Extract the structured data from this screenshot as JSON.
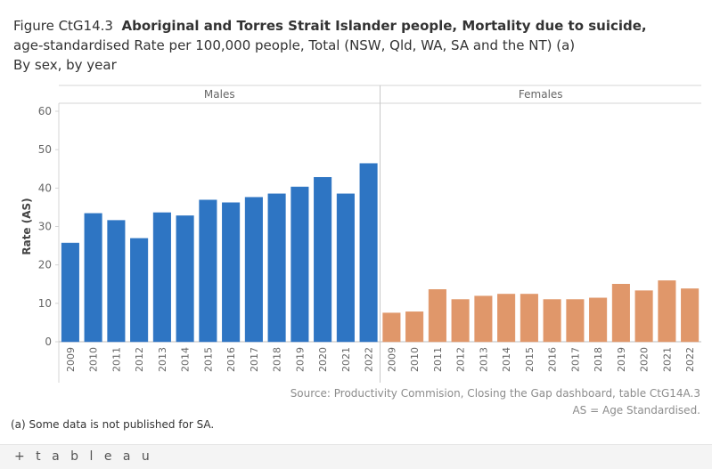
{
  "header": {
    "figure_label": "Figure CtG14.3",
    "title_line1": "Aboriginal and Torres Strait Islander people, Mortality due to suicide,",
    "title_line2": "age-standardised Rate per 100,000 people, Total (NSW, Qld, WA, SA and the NT) (a)",
    "subtitle": "By sex, by year"
  },
  "chart_data": {
    "type": "bar",
    "ylabel": "Rate (AS)",
    "ylim": [
      0,
      60
    ],
    "yticks": [
      0,
      10,
      20,
      30,
      40,
      50,
      60
    ],
    "grid": false,
    "panels": [
      {
        "name": "Males",
        "color": "#2e75c3",
        "categories": [
          "2009",
          "2010",
          "2011",
          "2012",
          "2013",
          "2014",
          "2015",
          "2016",
          "2017",
          "2018",
          "2019",
          "2020",
          "2021",
          "2022"
        ],
        "values": [
          25.7,
          33.4,
          31.6,
          26.9,
          33.6,
          32.8,
          36.9,
          36.2,
          37.6,
          38.5,
          40.3,
          42.8,
          38.5,
          46.4
        ]
      },
      {
        "name": "Females",
        "color": "#e0976a",
        "categories": [
          "2009",
          "2010",
          "2011",
          "2012",
          "2013",
          "2014",
          "2015",
          "2016",
          "2017",
          "2018",
          "2019",
          "2020",
          "2021",
          "2022"
        ],
        "values": [
          7.5,
          7.8,
          13.6,
          11.0,
          11.9,
          12.4,
          12.4,
          11.0,
          11.0,
          11.4,
          15.0,
          13.3,
          15.9,
          13.8
        ]
      }
    ]
  },
  "source": {
    "line1": "Source: Productivity Commision, Closing the Gap dashboard, table CtG14A.3",
    "line2": "AS = Age Standardised."
  },
  "footnote": "(a) Some data is not published for SA.",
  "footer": {
    "logo_text": "+ t a b l e a u"
  }
}
